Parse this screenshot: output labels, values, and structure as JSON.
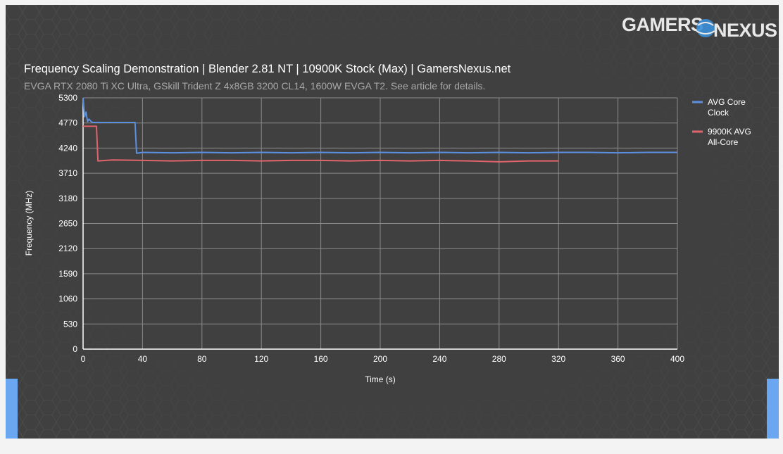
{
  "brand": {
    "logo_text": "GAMERSNEXUS"
  },
  "colors": {
    "background": "#404040",
    "grid": "#8a8a8a",
    "axis": "#ffffff",
    "text": "#ffffff",
    "subtitle": "#a8a8a8",
    "accent_blue": "#6aa7f0"
  },
  "chart_data": {
    "type": "line",
    "title": "Frequency Scaling Demonstration | Blender 2.81 NT | 10900K Stock (Max) | GamersNexus.net",
    "subtitle": "EVGA RTX 2080 Ti XC Ultra, GSkill Trident Z 4x8GB 3200 CL14, 1600W EVGA T2. See article for details.",
    "xlabel": "Time (s)",
    "ylabel": "Frequency (MHz)",
    "xlim": [
      0,
      400
    ],
    "ylim": [
      0,
      5300
    ],
    "x_ticks": [
      0,
      40,
      80,
      120,
      160,
      200,
      240,
      280,
      320,
      360,
      400
    ],
    "y_ticks": [
      0,
      530,
      1060,
      1590,
      2120,
      2650,
      3180,
      3710,
      4240,
      4770,
      5300
    ],
    "grid": true,
    "legend_position": "right",
    "series": [
      {
        "name": "AVG Core Clock",
        "color": "#5b8fe0",
        "points": [
          [
            0,
            5300
          ],
          [
            1,
            4900
          ],
          [
            2,
            5000
          ],
          [
            3,
            4800
          ],
          [
            4,
            4850
          ],
          [
            6,
            4780
          ],
          [
            10,
            4780
          ],
          [
            20,
            4780
          ],
          [
            30,
            4780
          ],
          [
            35,
            4780
          ],
          [
            36,
            4130
          ],
          [
            40,
            4150
          ],
          [
            60,
            4140
          ],
          [
            80,
            4150
          ],
          [
            100,
            4140
          ],
          [
            120,
            4150
          ],
          [
            140,
            4140
          ],
          [
            160,
            4150
          ],
          [
            180,
            4140
          ],
          [
            200,
            4150
          ],
          [
            220,
            4140
          ],
          [
            240,
            4150
          ],
          [
            260,
            4140
          ],
          [
            280,
            4150
          ],
          [
            300,
            4140
          ],
          [
            320,
            4150
          ],
          [
            340,
            4150
          ],
          [
            360,
            4140
          ],
          [
            380,
            4150
          ],
          [
            400,
            4150
          ]
        ]
      },
      {
        "name": "9900K AVG All-Core",
        "color": "#e0646b",
        "points": [
          [
            0,
            4700
          ],
          [
            5,
            4700
          ],
          [
            9,
            4700
          ],
          [
            10,
            3970
          ],
          [
            20,
            3990
          ],
          [
            40,
            3980
          ],
          [
            60,
            3970
          ],
          [
            80,
            3980
          ],
          [
            100,
            3980
          ],
          [
            120,
            3970
          ],
          [
            140,
            3980
          ],
          [
            160,
            3980
          ],
          [
            180,
            3970
          ],
          [
            200,
            3980
          ],
          [
            220,
            3970
          ],
          [
            240,
            3980
          ],
          [
            260,
            3970
          ],
          [
            280,
            3950
          ],
          [
            300,
            3970
          ],
          [
            320,
            3970
          ]
        ]
      }
    ],
    "legend_entries": [
      {
        "lines": [
          "AVG Core",
          "Clock"
        ]
      },
      {
        "lines": [
          "9900K AVG",
          "All-Core"
        ]
      }
    ]
  }
}
